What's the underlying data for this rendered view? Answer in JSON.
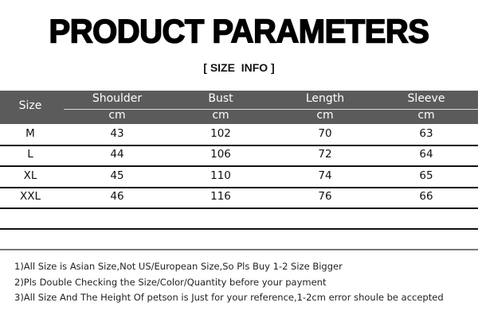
{
  "title": "PRODUCT PARAMETERS",
  "subtitle": "[ SIZE  INFO ]",
  "table": {
    "size_header": "Size",
    "columns": [
      {
        "label": "Shoulder",
        "unit": "cm"
      },
      {
        "label": "Bust",
        "unit": "cm"
      },
      {
        "label": "Length",
        "unit": "cm"
      },
      {
        "label": "Sleeve",
        "unit": "cm"
      }
    ],
    "rows": [
      {
        "size": "M",
        "values": [
          "43",
          "102",
          "70",
          "63"
        ]
      },
      {
        "size": "L",
        "values": [
          "44",
          "106",
          "72",
          "64"
        ]
      },
      {
        "size": "XL",
        "values": [
          "45",
          "110",
          "74",
          "65"
        ]
      },
      {
        "size": "XXL",
        "values": [
          "46",
          "116",
          "76",
          "66"
        ]
      }
    ]
  },
  "notes": [
    "1)All Size is Asian Size,Not US/European Size,So Pls Buy 1-2 Size Bigger",
    "2)Pls Double Checking the Size/Color/Quantity before your payment",
    "3)All Size And The Height Of petson is Just for your reference,1-2cm error shoule be accepted"
  ],
  "colors": {
    "header_bg": "#5b5b5b",
    "header_text": "#ffffff"
  }
}
